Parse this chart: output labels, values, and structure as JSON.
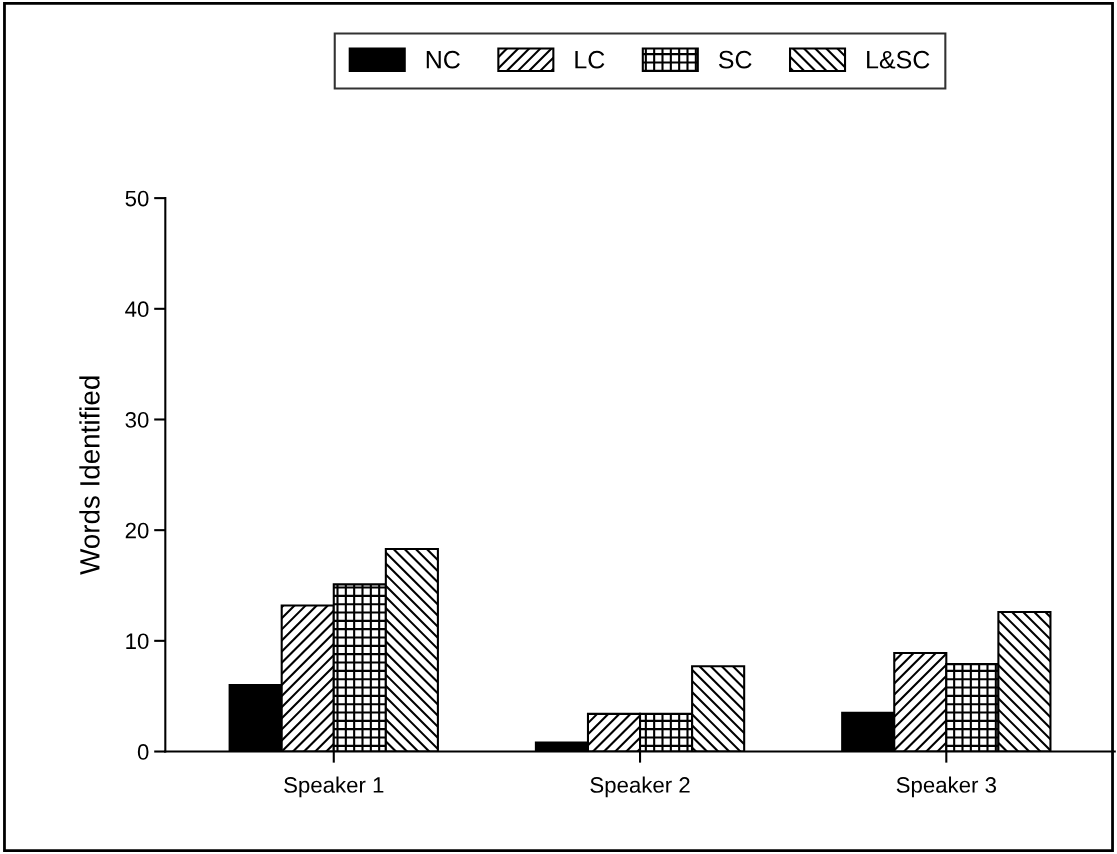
{
  "chart_data": {
    "type": "bar",
    "ylabel": "Words Identified",
    "categories": [
      "Speaker 1",
      "Speaker 2",
      "Speaker 3"
    ],
    "series": [
      {
        "name": "NC",
        "color": "#000000",
        "values": [
          6.0,
          0.8,
          3.5
        ]
      },
      {
        "name": "LC",
        "color": "#000000",
        "values": [
          13.2,
          3.4,
          8.9
        ]
      },
      {
        "name": "SC",
        "color": "#000000",
        "values": [
          15.1,
          3.4,
          7.9
        ]
      },
      {
        "name": "L&SC",
        "color": "#000000",
        "values": [
          18.3,
          7.7,
          12.6
        ]
      }
    ],
    "ylim": [
      0,
      50
    ],
    "yticks": [
      0,
      10,
      20,
      30,
      40,
      50
    ],
    "grid": false,
    "legend": "top"
  }
}
